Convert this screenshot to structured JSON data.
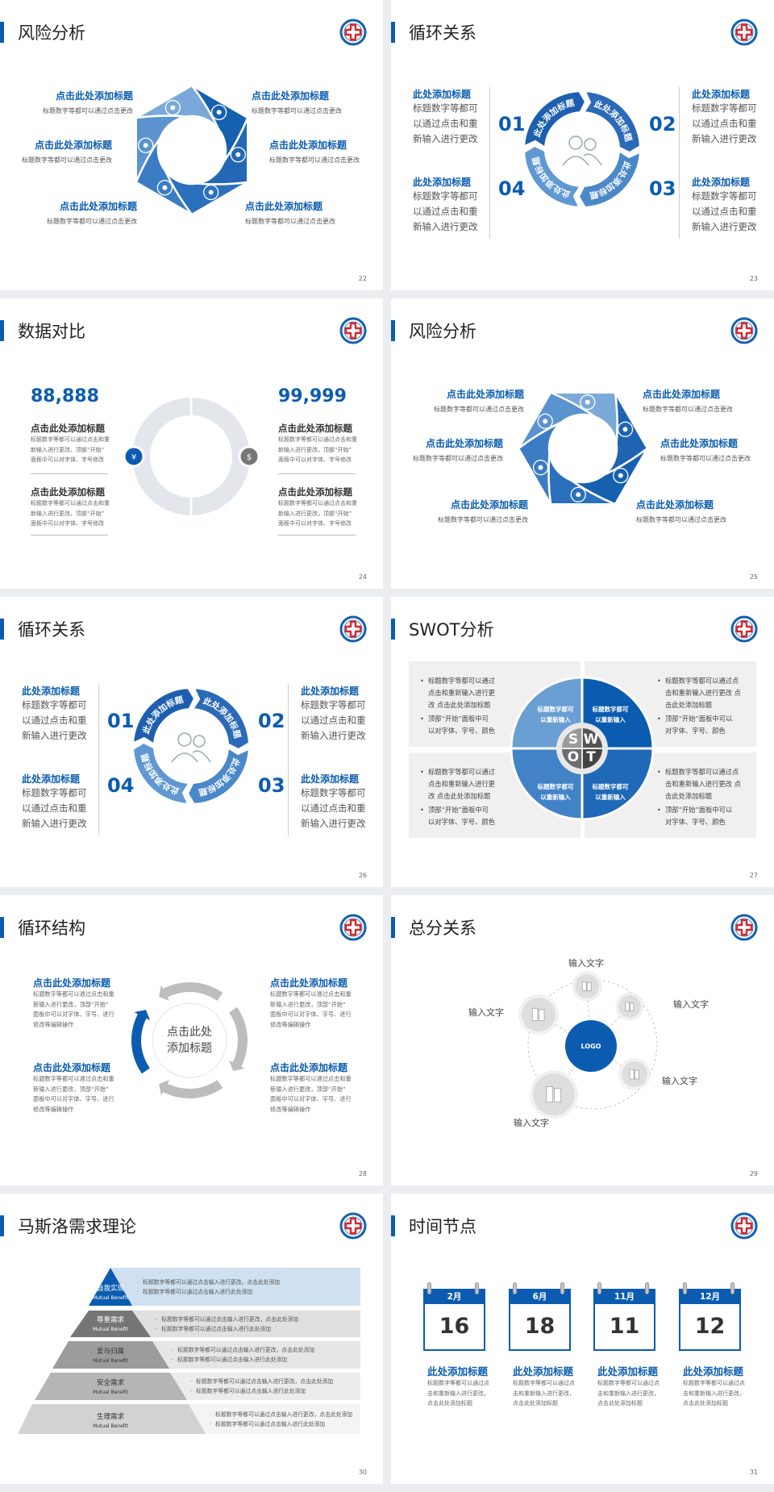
{
  "colors": {
    "primary": "#0b5cb0",
    "gray": "#b9b9b9",
    "light_blue": "#cfe0f0",
    "background": "#ebedf0"
  },
  "slides": {
    "s22": {
      "title": "风险分析",
      "page": "22",
      "items": [
        {
          "title": "点击此处添加标题",
          "text": "标题数字等都可以通过点击更改",
          "icon": "lungs-icon"
        },
        {
          "title": "点击此处添加标题",
          "text": "标题数字等都可以通过点击更改",
          "icon": "kidney-icon"
        },
        {
          "title": "点击此处添加标题",
          "text": "标题数字等都可以通过点击更改",
          "icon": "intestine-icon"
        },
        {
          "title": "点击此处添加标题",
          "text": "标题数字等都可以通过点击更改",
          "icon": "heart-icon"
        },
        {
          "title": "点击此处添加标题",
          "text": "标题数字等都可以通过点击更改",
          "icon": "liver-icon"
        },
        {
          "title": "点击此处添加标题",
          "text": "标题数字等都可以通过点击更改",
          "icon": "stomach-icon"
        }
      ]
    },
    "s23": {
      "title": "循环关系",
      "page": "23",
      "numbers": [
        "01",
        "02",
        "03",
        "04"
      ],
      "ring_labels": [
        "此处添加标题",
        "此处添加标题",
        "此处添加标题",
        "此处添加标题"
      ],
      "items": [
        {
          "title": "此处添加标题",
          "lines": [
            "标题数字等都可",
            "以通过点击和重",
            "新输入进行更改"
          ]
        },
        {
          "title": "此处添加标题",
          "lines": [
            "标题数字等都可",
            "以通过点击和重",
            "新输入进行更改"
          ]
        },
        {
          "title": "此处添加标题",
          "lines": [
            "标题数字等都可",
            "以通过点击和重",
            "新输入进行更改"
          ]
        },
        {
          "title": "此处添加标题",
          "lines": [
            "标题数字等都可",
            "以通过点击和重",
            "新输入进行更改"
          ]
        }
      ]
    },
    "s24": {
      "title": "数据对比",
      "page": "24",
      "values": [
        "88,888",
        "99,999"
      ],
      "items": [
        {
          "title": "点击此处添加标题",
          "lines": [
            "标题数字等都可以通过点击和重",
            "新输入进行更改，顶部“开始”",
            "面板中可以对字体、字号修改"
          ]
        },
        {
          "title": "点击此处添加标题",
          "lines": [
            "标题数字等都可以通过点击和重",
            "新输入进行更改，顶部“开始”",
            "面板中可以对字体、字号修改"
          ]
        },
        {
          "title": "点击此处添加标题",
          "lines": [
            "标题数字等都可以通过点击和重",
            "新输入进行更改，顶部“开始”",
            "面板中可以对字体、字号修改"
          ]
        },
        {
          "title": "点击此处添加标题",
          "lines": [
            "标题数字等都可以通过点击和重",
            "新输入进行更改，顶部“开始”",
            "面板中可以对字体、字号修改"
          ]
        }
      ]
    },
    "s25": {
      "title": "风险分析",
      "page": "25",
      "items": [
        {
          "title": "点击此处添加标题",
          "text": "标题数字等都可以通过点击更改",
          "icon": "money-bag-icon"
        },
        {
          "title": "点击此处添加标题",
          "text": "标题数字等都可以通过点击更改",
          "icon": "coins-icon"
        },
        {
          "title": "点击此处添加标题",
          "text": "标题数字等都可以通过点击更改",
          "icon": "users-icon"
        },
        {
          "title": "点击此处添加标题",
          "text": "标题数字等都可以通过点击更改",
          "icon": "pie-chart-icon"
        },
        {
          "title": "点击此处添加标题",
          "text": "标题数字等都可以通过点击更改",
          "icon": "building-icon"
        },
        {
          "title": "点击此处添加标题",
          "text": "标题数字等都可以通过点击更改",
          "icon": "yen-icon"
        }
      ]
    },
    "s26": {
      "title": "循环关系",
      "page": "26",
      "numbers": [
        "01",
        "02",
        "03",
        "04"
      ],
      "ring_labels": [
        "此处添加标题",
        "此处添加标题",
        "此处添加标题",
        "此处添加标题"
      ],
      "items": [
        {
          "title": "此处添加标题",
          "lines": [
            "标题数字等都可",
            "以通过点击和重",
            "新输入进行更改"
          ]
        },
        {
          "title": "此处添加标题",
          "lines": [
            "标题数字等都可",
            "以通过点击和重",
            "新输入进行更改"
          ]
        },
        {
          "title": "此处添加标题",
          "lines": [
            "标题数字等都可",
            "以通过点击和重",
            "新输入进行更改"
          ]
        },
        {
          "title": "此处添加标题",
          "lines": [
            "标题数字等都可",
            "以通过点击和重",
            "新输入进行更改"
          ]
        }
      ]
    },
    "s27": {
      "title": "SWOT分析",
      "page": "27",
      "letters": [
        "S",
        "W",
        "O",
        "T"
      ],
      "quadrant_labels": [
        [
          "标题数字都可",
          "以重新输入"
        ],
        [
          "标题数字都可",
          "以重新输入"
        ],
        [
          "标题数字都可",
          "以重新输入"
        ],
        [
          "标题数字都可",
          "以重新输入"
        ]
      ],
      "boxes": [
        {
          "b1": [
            "标题数字等都可以通过",
            "点击和重新输入进行更",
            "改 点击此处添加标题"
          ],
          "b2": [
            "顶部“开始”面板中可",
            "以对字体、字号、颜色"
          ]
        },
        {
          "b1": [
            "标题数字等都可以通过点",
            "击和重新输入进行更改 点",
            "击此处添加标题"
          ],
          "b2": [
            "顶部“开始”面板中可以",
            "对字体、字号、颜色"
          ]
        },
        {
          "b1": [
            "标题数字等都可以通过",
            "点击和重新输入进行更",
            "改 点击此处添加标题"
          ],
          "b2": [
            "顶部“开始”面板中可",
            "以对字体、字号、颜色"
          ]
        },
        {
          "b1": [
            "标题数字等都可以通过点",
            "击和重新输入进行更改 点",
            "击此处添加标题"
          ],
          "b2": [
            "顶部“开始”面板中可以",
            "对字体、字号、颜色"
          ]
        }
      ]
    },
    "s28": {
      "title": "循环结构",
      "page": "28",
      "center": [
        "点击此处",
        "添加标题"
      ],
      "items": [
        {
          "title": "点击此处添加标题",
          "lines": [
            "标题数字等都可以通过点击和重",
            "新输入进行更改，顶部“开始”",
            "面板中可以对字体、字号、进行",
            "修改等编辑操作"
          ]
        },
        {
          "title": "点击此处添加标题",
          "lines": [
            "标题数字等都可以通过点击和重",
            "新输入进行更改，顶部“开始”",
            "面板中可以对字体、字号、进行",
            "修改等编辑操作"
          ]
        },
        {
          "title": "点击此处添加标题",
          "lines": [
            "标题数字等都可以通过点击和重",
            "新输入进行更改，顶部“开始”",
            "面板中可以对字体、字号、进行",
            "修改等编辑操作"
          ]
        },
        {
          "title": "点击此处添加标题",
          "lines": [
            "标题数字等都可以通过点击和重",
            "新输入进行更改，顶部“开始”",
            "面板中可以对字体、字号、进行",
            "修改等编辑操作"
          ]
        }
      ]
    },
    "s29": {
      "title": "总分关系",
      "page": "29",
      "logo": "LOGO",
      "labels": [
        "输入文字",
        "输入文字",
        "输入文字",
        "输入文字",
        "输入文字"
      ]
    },
    "s30": {
      "title": "马斯洛需求理论",
      "page": "30",
      "levels": [
        {
          "name": "自我实现",
          "sub": "Mutual Benefit",
          "bullets": [
            "标题数字等都可以通过点击输入进行更改，点击此处添加",
            "标题数字等都可以通过点击输入进行此处添加"
          ]
        },
        {
          "name": "尊重需求",
          "sub": "Mutual Benefit",
          "bullets": [
            "标题数字等都可以通过点击输入进行更改，点击此处添加",
            "标题数字等都可以通过点击输入进行此处添加"
          ]
        },
        {
          "name": "爱与归属",
          "sub": "Mutual Benefit",
          "bullets": [
            "标题数字等都可以通过点击输入进行更改，点击此处添加",
            "标题数字等都可以通过点击输入进行此处添加"
          ]
        },
        {
          "name": "安全需求",
          "sub": "Mutual Benefit",
          "bullets": [
            "标题数字等都可以通过点击输入进行更改，点击此处添加",
            "标题数字等都可以通过点击输入进行此处添加"
          ]
        },
        {
          "name": "生理需求",
          "sub": "Mutual Benefit",
          "bullets": [
            "标题数字等都可以通过点击输入进行更改，点击此处添加",
            "标题数字等都可以通过点击输入进行此处添加"
          ]
        }
      ]
    },
    "s31": {
      "title": "时间节点",
      "page": "31",
      "events": [
        {
          "month": "2月",
          "day": "16",
          "title": "此处添加标题",
          "lines": [
            "标题数字等都可以通过点",
            "击和重新输入进行更改，",
            "点击此处添加标题"
          ]
        },
        {
          "month": "6月",
          "day": "18",
          "title": "此处添加标题",
          "lines": [
            "标题数字等都可以通过点",
            "击和重新输入进行更改，",
            "点击此处添加标题"
          ]
        },
        {
          "month": "11月",
          "day": "11",
          "title": "此处添加标题",
          "lines": [
            "标题数字等都可以通过点",
            "击和重新输入进行更改，",
            "点击此处添加标题"
          ]
        },
        {
          "month": "12月",
          "day": "12",
          "title": "此处添加标题",
          "lines": [
            "标题数字等都可以通过点",
            "击和重新输入进行更改，",
            "点击此处添加标题"
          ]
        }
      ]
    }
  }
}
